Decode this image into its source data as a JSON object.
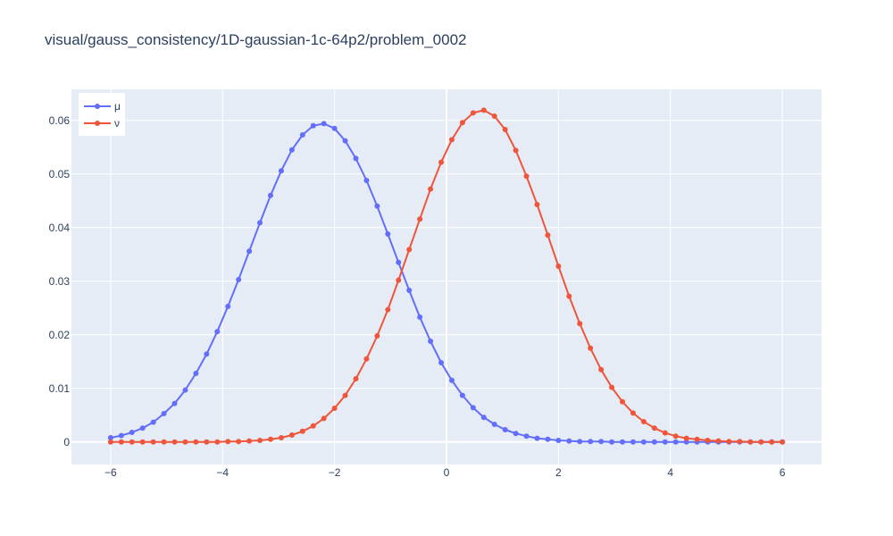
{
  "chart_data": {
    "type": "line",
    "title": "visual/gauss_consistency/1D-gaussian-1c-64p2/problem_0002",
    "xlabel": "",
    "ylabel": "",
    "xlim": [
      -6.7,
      6.7
    ],
    "ylim": [
      -0.0042,
      0.0658
    ],
    "x_ticks": [
      -6,
      -4,
      -2,
      0,
      2,
      4,
      6
    ],
    "x_tick_labels": [
      "−6",
      "−4",
      "−2",
      "0",
      "2",
      "4",
      "6"
    ],
    "y_ticks": [
      0,
      0.01,
      0.02,
      0.03,
      0.04,
      0.05,
      0.06
    ],
    "y_tick_labels": [
      "0",
      "0.01",
      "0.02",
      "0.03",
      "0.04",
      "0.05",
      "0.06"
    ],
    "grid": true,
    "legend_position": "top-left",
    "x_start": -6,
    "x_end": 6,
    "num_points": 64,
    "series": [
      {
        "name": "μ",
        "color": "#636efa",
        "values": [
          0.0008,
          0.0012,
          0.0018,
          0.0026,
          0.0037,
          0.0053,
          0.0072,
          0.0097,
          0.0128,
          0.0164,
          0.0206,
          0.0253,
          0.0303,
          0.0356,
          0.0409,
          0.046,
          0.0506,
          0.0545,
          0.0573,
          0.059,
          0.0594,
          0.0585,
          0.0562,
          0.0529,
          0.0488,
          0.044,
          0.0388,
          0.0335,
          0.0283,
          0.0233,
          0.0188,
          0.0148,
          0.0115,
          0.0087,
          0.0064,
          0.0046,
          0.0033,
          0.0023,
          0.0016,
          0.0011,
          0.0007,
          0.0005,
          0.0003,
          0.0002,
          0.0001,
          0.0001,
          0.0001,
          0,
          0,
          0,
          0,
          0,
          0,
          0,
          0,
          0,
          0,
          0,
          0,
          0,
          0,
          0,
          0,
          0
        ]
      },
      {
        "name": "ν",
        "color": "#ef553b",
        "values": [
          0,
          0,
          0,
          0,
          0,
          0,
          0,
          0,
          0,
          0,
          0,
          0.0001,
          0.0001,
          0.0002,
          0.0003,
          0.0005,
          0.0008,
          0.0013,
          0.002,
          0.003,
          0.0044,
          0.0063,
          0.0087,
          0.0118,
          0.0155,
          0.0198,
          0.0247,
          0.0302,
          0.0359,
          0.0416,
          0.0472,
          0.0522,
          0.0564,
          0.0596,
          0.0614,
          0.0619,
          0.0608,
          0.0583,
          0.0544,
          0.0496,
          0.0443,
          0.0386,
          0.0328,
          0.0272,
          0.0221,
          0.0175,
          0.0135,
          0.0102,
          0.0075,
          0.0054,
          0.0038,
          0.0026,
          0.0017,
          0.0011,
          0.0007,
          0.0005,
          0.0003,
          0.0002,
          0.0001,
          0.0001,
          0,
          0,
          0,
          0
        ]
      }
    ]
  }
}
